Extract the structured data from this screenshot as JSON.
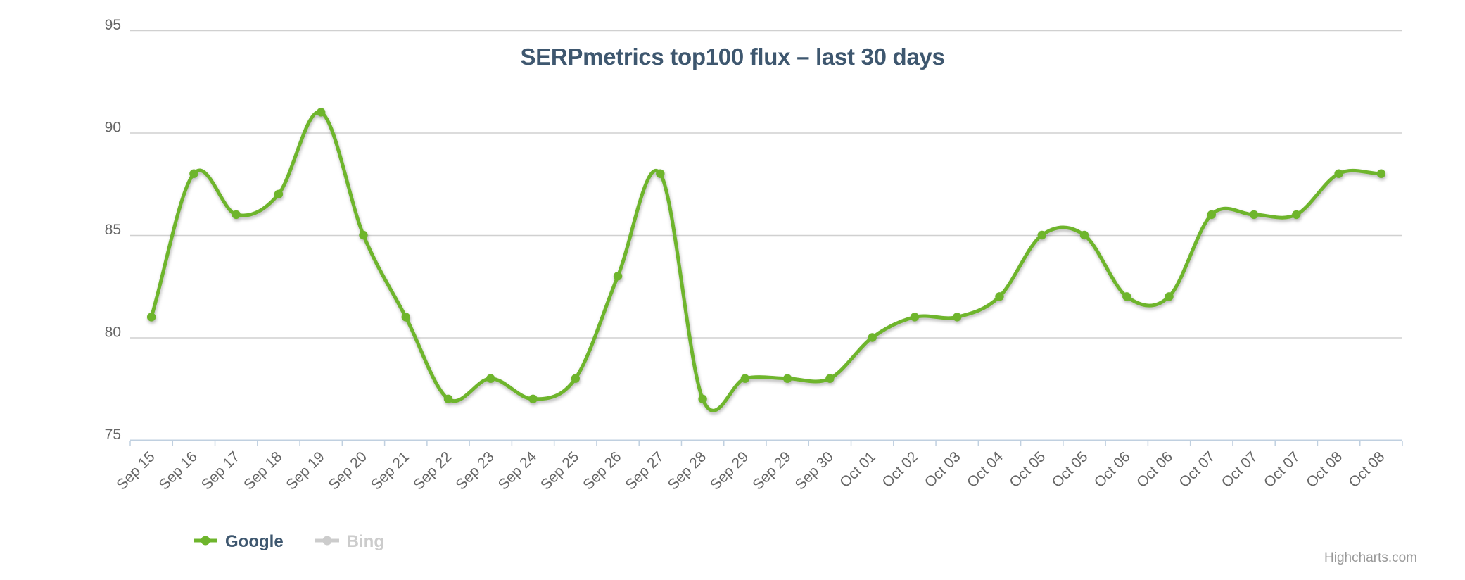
{
  "chart": {
    "title": "SERPmetrics top100 flux – last 30 days"
  },
  "chart_data": {
    "type": "line",
    "subtype": "spline",
    "categories": [
      "Sep 15",
      "Sep 16",
      "Sep 17",
      "Sep 18",
      "Sep 19",
      "Sep 20",
      "Sep 21",
      "Sep 22",
      "Sep 23",
      "Sep 24",
      "Sep 25",
      "Sep 26",
      "Sep 27",
      "Sep 28",
      "Sep 29",
      "Sep 29",
      "Sep 30",
      "Oct 01",
      "Oct 02",
      "Oct 03",
      "Oct 04",
      "Oct 05",
      "Oct 05",
      "Oct 06",
      "Oct 06",
      "Oct 07",
      "Oct 07",
      "Oct 07",
      "Oct 08",
      "Oct 08"
    ],
    "series": [
      {
        "name": "Google",
        "color": "#6EB52C",
        "visible": true,
        "values": [
          81,
          88,
          86,
          87,
          91,
          85,
          81,
          77,
          78,
          77,
          78,
          83,
          88,
          77,
          78,
          78,
          78,
          80,
          81,
          81,
          82,
          85,
          85,
          82,
          82,
          86,
          86,
          86,
          88,
          88
        ]
      },
      {
        "name": "Bing",
        "color": "#CCCCCC",
        "visible": false,
        "values": []
      }
    ],
    "title": "SERPmetrics top100 flux – last 30 days",
    "xlabel": "",
    "ylabel": "",
    "ylim": [
      75,
      95
    ],
    "yticks": [
      75,
      80,
      85,
      90,
      95
    ],
    "grid": "horizontal-only",
    "legend_position": "bottom-left",
    "marker": "filled-circle"
  },
  "legend": {
    "items": [
      {
        "label": "Google",
        "color": "#6EB52C",
        "disabled": false
      },
      {
        "label": "Bing",
        "color": "#CCCCCC",
        "disabled": true
      }
    ]
  },
  "credits": {
    "text": "Highcharts.com"
  },
  "colors": {
    "title": "#3E576F",
    "series_green": "#6EB52C",
    "disabled_gray": "#CCCCCC",
    "axis_line": "#C0D0E0",
    "gridline": "#D0D0D0",
    "axis_labels": "#666666"
  }
}
